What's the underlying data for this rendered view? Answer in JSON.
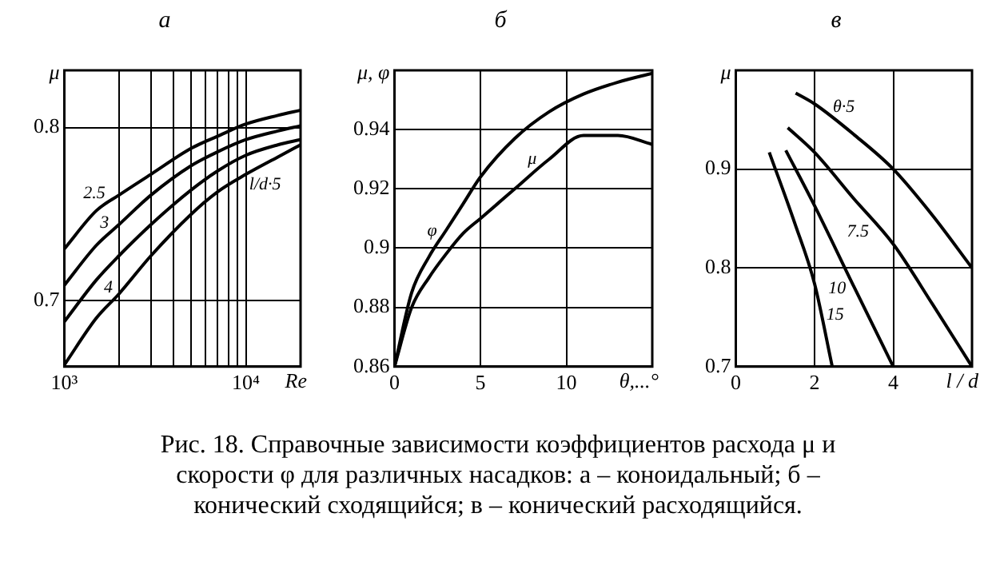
{
  "chart_data": [
    {
      "type": "line",
      "title": "а",
      "xlabel": "Re",
      "ylabel": "μ",
      "log": "x",
      "grid": true,
      "marker": "none",
      "line_style": "solid",
      "legend": false,
      "xlim": [
        1000,
        20000
      ],
      "ylim": [
        0.662,
        0.833
      ],
      "xticks": [
        {
          "value": 1000,
          "label": "10³"
        },
        {
          "value": 2000,
          "label": null
        },
        {
          "value": 3000,
          "label": null
        },
        {
          "value": 4000,
          "label": null
        },
        {
          "value": 5000,
          "label": null
        },
        {
          "value": 6000,
          "label": null
        },
        {
          "value": 7000,
          "label": null
        },
        {
          "value": 8000,
          "label": null
        },
        {
          "value": 9000,
          "label": null
        },
        {
          "value": 10000,
          "label": "10⁴"
        }
      ],
      "yticks": [
        0.7,
        0.8
      ],
      "x": [
        1000,
        1500,
        2000,
        3000,
        5000,
        7000,
        10000,
        15000,
        20000
      ],
      "series": [
        {
          "name": "2.5",
          "color": "#000000",
          "values": [
            0.73,
            0.752,
            0.761,
            0.773,
            0.788,
            0.795,
            0.802,
            0.807,
            0.81
          ]
        },
        {
          "name": "3",
          "color": "#000000",
          "values": [
            0.709,
            0.732,
            0.744,
            0.761,
            0.778,
            0.786,
            0.793,
            0.798,
            0.801
          ]
        },
        {
          "name": "4",
          "color": "#000000",
          "values": [
            0.688,
            0.712,
            0.726,
            0.744,
            0.764,
            0.775,
            0.784,
            0.79,
            0.793
          ]
        },
        {
          "name": "l/d·5",
          "color": "#000000",
          "values": [
            0.663,
            0.69,
            0.704,
            0.726,
            0.75,
            0.763,
            0.773,
            0.783,
            0.79
          ]
        }
      ]
    },
    {
      "type": "line",
      "title": "б",
      "xlabel": "θ,...°",
      "ylabel": "μ, φ",
      "grid": true,
      "marker": "none",
      "line_style": "solid",
      "legend": false,
      "xlim": [
        0,
        15
      ],
      "ylim": [
        0.86,
        0.96
      ],
      "xticks": [
        0,
        5,
        10
      ],
      "yticks": [
        0.86,
        0.88,
        0.9,
        0.92,
        0.94
      ],
      "x": [
        0,
        1,
        2,
        3,
        4,
        5,
        7,
        9,
        11,
        13,
        15
      ],
      "series": [
        {
          "name": "φ",
          "color": "#000000",
          "values": [
            0.86,
            0.885,
            0.897,
            0.906,
            0.915,
            0.924,
            0.937,
            0.946,
            0.952,
            0.956,
            0.959
          ]
        },
        {
          "name": "μ",
          "color": "#000000",
          "values": [
            0.86,
            0.88,
            0.89,
            0.898,
            0.905,
            0.91,
            0.92,
            0.93,
            0.938,
            0.938,
            0.935
          ]
        }
      ]
    },
    {
      "type": "line",
      "title": "в",
      "xlabel": "l / d",
      "ylabel": "μ",
      "grid": true,
      "marker": "none",
      "line_style": "solid",
      "legend": false,
      "xlim": [
        0,
        6
      ],
      "ylim": [
        0.7,
        1.0
      ],
      "xticks": [
        0,
        2,
        4
      ],
      "yticks": [
        0.7,
        0.8,
        0.9
      ],
      "series": [
        {
          "name": "θ·5",
          "color": "#000000",
          "x": [
            1.52,
            2,
            3,
            4,
            5,
            6
          ],
          "values": [
            0.977,
            0.966,
            0.935,
            0.9,
            0.853,
            0.8
          ]
        },
        {
          "name": "7.5",
          "color": "#000000",
          "x": [
            1.32,
            2,
            3,
            4,
            5,
            6
          ],
          "values": [
            0.942,
            0.917,
            0.87,
            0.824,
            0.763,
            0.7
          ]
        },
        {
          "name": "10",
          "color": "#000000",
          "x": [
            1.27,
            2,
            3,
            4
          ],
          "values": [
            0.919,
            0.863,
            0.781,
            0.7
          ]
        },
        {
          "name": "15",
          "color": "#000000",
          "x": [
            0.85,
            1.5,
            2,
            2.45
          ],
          "values": [
            0.917,
            0.845,
            0.784,
            0.7
          ]
        }
      ]
    },
    {
      "type": "other",
      "annotations": [
        "Рис. 18. Справочные зависимости коэффициентов расхода μ и скорости φ для различных насадков: а – коноидальный; б – конический сходящийся; в – конический расходящийся."
      ]
    }
  ]
}
